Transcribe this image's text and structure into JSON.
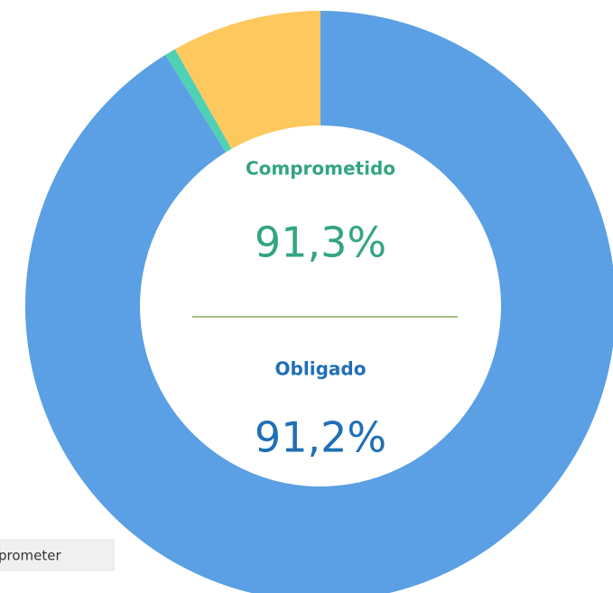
{
  "chart_data": {
    "type": "donut",
    "values": [
      91.2,
      0.6,
      8.2
    ],
    "colors": [
      "#5b9fe4",
      "#4fd1b4",
      "#fdc85e"
    ],
    "center_labels": [
      {
        "title": "Comprometido",
        "value": "91,3%",
        "color": "#33a583"
      },
      {
        "title": "Obligado",
        "value": "91,2%",
        "color": "#1f6fb5"
      }
    ]
  },
  "button": {
    "label": "prometer"
  }
}
